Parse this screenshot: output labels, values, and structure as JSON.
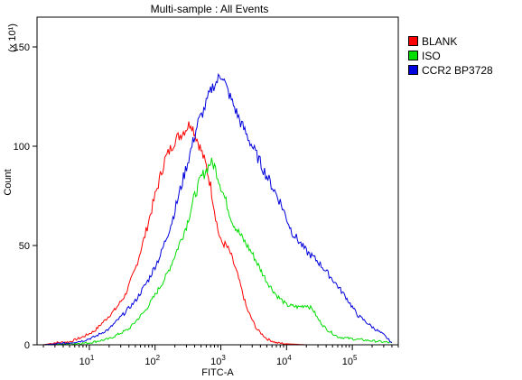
{
  "chart_data": {
    "type": "line",
    "title": "Multi-sample : All Events",
    "xlabel": "FITC-A",
    "ylabel": "Count",
    "y_multiplier": "(x 10¹)",
    "x_scale": "log",
    "xlim": [
      1.6,
      500000
    ],
    "ylim": [
      0,
      165
    ],
    "y_ticks": [
      0,
      50,
      100,
      150
    ],
    "x_ticks": [
      {
        "value": 10,
        "base": "10",
        "exp": "1"
      },
      {
        "value": 100,
        "base": "10",
        "exp": "2"
      },
      {
        "value": 1000,
        "base": "10",
        "exp": "3"
      },
      {
        "value": 10000,
        "base": "10",
        "exp": "4"
      },
      {
        "value": 100000,
        "base": "10",
        "exp": "5"
      }
    ],
    "grid": false,
    "legend_position": "top-right",
    "series": [
      {
        "name": "BLANK",
        "color": "#ff0000",
        "points": [
          [
            2,
            0
          ],
          [
            3,
            1
          ],
          [
            5,
            1.5
          ],
          [
            8,
            4
          ],
          [
            12,
            7
          ],
          [
            18,
            13
          ],
          [
            25,
            18
          ],
          [
            35,
            25
          ],
          [
            50,
            38
          ],
          [
            70,
            55
          ],
          [
            100,
            75
          ],
          [
            140,
            93
          ],
          [
            200,
            103
          ],
          [
            280,
            108
          ],
          [
            350,
            112
          ],
          [
            420,
            105
          ],
          [
            500,
            98
          ],
          [
            600,
            90
          ],
          [
            700,
            80
          ],
          [
            800,
            68
          ],
          [
            900,
            58
          ],
          [
            1000,
            52
          ],
          [
            1200,
            50
          ],
          [
            1400,
            46
          ],
          [
            1800,
            35
          ],
          [
            2500,
            18
          ],
          [
            3500,
            8
          ],
          [
            5000,
            3
          ],
          [
            7000,
            1
          ],
          [
            10000,
            0.5
          ],
          [
            20000,
            0
          ],
          [
            400000,
            0
          ]
        ]
      },
      {
        "name": "ISO",
        "color": "#00dd00",
        "points": [
          [
            2,
            0
          ],
          [
            5,
            0.5
          ],
          [
            10,
            1
          ],
          [
            20,
            3
          ],
          [
            40,
            8
          ],
          [
            70,
            17
          ],
          [
            100,
            25
          ],
          [
            150,
            35
          ],
          [
            200,
            45
          ],
          [
            300,
            60
          ],
          [
            400,
            75
          ],
          [
            500,
            84
          ],
          [
            600,
            88
          ],
          [
            700,
            92
          ],
          [
            800,
            90
          ],
          [
            900,
            85
          ],
          [
            1000,
            80
          ],
          [
            1200,
            72
          ],
          [
            1500,
            62
          ],
          [
            2000,
            55
          ],
          [
            3000,
            46
          ],
          [
            4000,
            38
          ],
          [
            5000,
            32
          ],
          [
            7000,
            25
          ],
          [
            10000,
            20
          ],
          [
            15000,
            19
          ],
          [
            20000,
            20
          ],
          [
            25000,
            18
          ],
          [
            30000,
            13
          ],
          [
            40000,
            8
          ],
          [
            60000,
            4
          ],
          [
            100000,
            3
          ],
          [
            200000,
            2
          ],
          [
            400000,
            1
          ]
        ]
      },
      {
        "name": "CCR2 BP3728",
        "color": "#0000dd",
        "points": [
          [
            2,
            0
          ],
          [
            5,
            1
          ],
          [
            8,
            2
          ],
          [
            12,
            4
          ],
          [
            20,
            8
          ],
          [
            30,
            14
          ],
          [
            50,
            22
          ],
          [
            80,
            33
          ],
          [
            120,
            45
          ],
          [
            180,
            62
          ],
          [
            250,
            80
          ],
          [
            350,
            98
          ],
          [
            450,
            112
          ],
          [
            550,
            118
          ],
          [
            650,
            125
          ],
          [
            750,
            130
          ],
          [
            850,
            132
          ],
          [
            950,
            135
          ],
          [
            1050,
            136
          ],
          [
            1200,
            130
          ],
          [
            1500,
            122
          ],
          [
            2000,
            112
          ],
          [
            3000,
            100
          ],
          [
            5000,
            85
          ],
          [
            8000,
            72
          ],
          [
            12000,
            57
          ],
          [
            20000,
            47
          ],
          [
            30000,
            42
          ],
          [
            50000,
            33
          ],
          [
            80000,
            24
          ],
          [
            120000,
            15
          ],
          [
            200000,
            9
          ],
          [
            300000,
            5
          ],
          [
            400000,
            1
          ]
        ]
      }
    ]
  }
}
